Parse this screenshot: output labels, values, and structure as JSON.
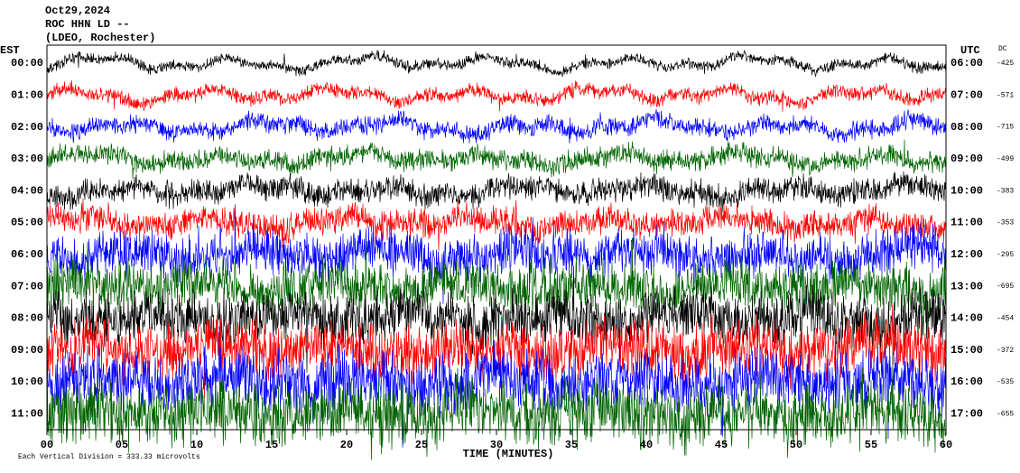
{
  "chart_data": {
    "type": "helicorder",
    "title_lines": [
      "Oct29,2024",
      "ROC HHN LD --",
      "(LDEO, Rochester)"
    ],
    "left_axis_label": "EST",
    "right_axis_label": "UTC",
    "dc_label": "DC",
    "rows": [
      {
        "est": "00:00",
        "utc": "06:00",
        "dc": -425,
        "color": "#000000"
      },
      {
        "est": "01:00",
        "utc": "07:00",
        "dc": -571,
        "color": "#ff0000"
      },
      {
        "est": "02:00",
        "utc": "08:00",
        "dc": -715,
        "color": "#0000ff"
      },
      {
        "est": "03:00",
        "utc": "09:00",
        "dc": -499,
        "color": "#006400"
      },
      {
        "est": "04:00",
        "utc": "10:00",
        "dc": -383,
        "color": "#000000"
      },
      {
        "est": "05:00",
        "utc": "11:00",
        "dc": -353,
        "color": "#ff0000"
      },
      {
        "est": "06:00",
        "utc": "12:00",
        "dc": -295,
        "color": "#0000ff"
      },
      {
        "est": "07:00",
        "utc": "13:00",
        "dc": -695,
        "color": "#006400"
      },
      {
        "est": "08:00",
        "utc": "14:00",
        "dc": -454,
        "color": "#000000"
      },
      {
        "est": "09:00",
        "utc": "15:00",
        "dc": -372,
        "color": "#ff0000"
      },
      {
        "est": "10:00",
        "utc": "16:00",
        "dc": -535,
        "color": "#0000ff"
      },
      {
        "est": "11:00",
        "utc": "17:00",
        "dc": -655,
        "color": "#006400"
      }
    ],
    "xlabel": "TIME (MINUTES)",
    "xlim": [
      0,
      60
    ],
    "xticks": [
      {
        "value": 0,
        "label": "00"
      },
      {
        "value": 5,
        "label": "05"
      },
      10,
      15,
      20,
      25,
      30,
      35,
      40,
      45,
      50,
      55,
      60
    ],
    "footer": "Each Vertical Division = 333.33 microvolts"
  }
}
